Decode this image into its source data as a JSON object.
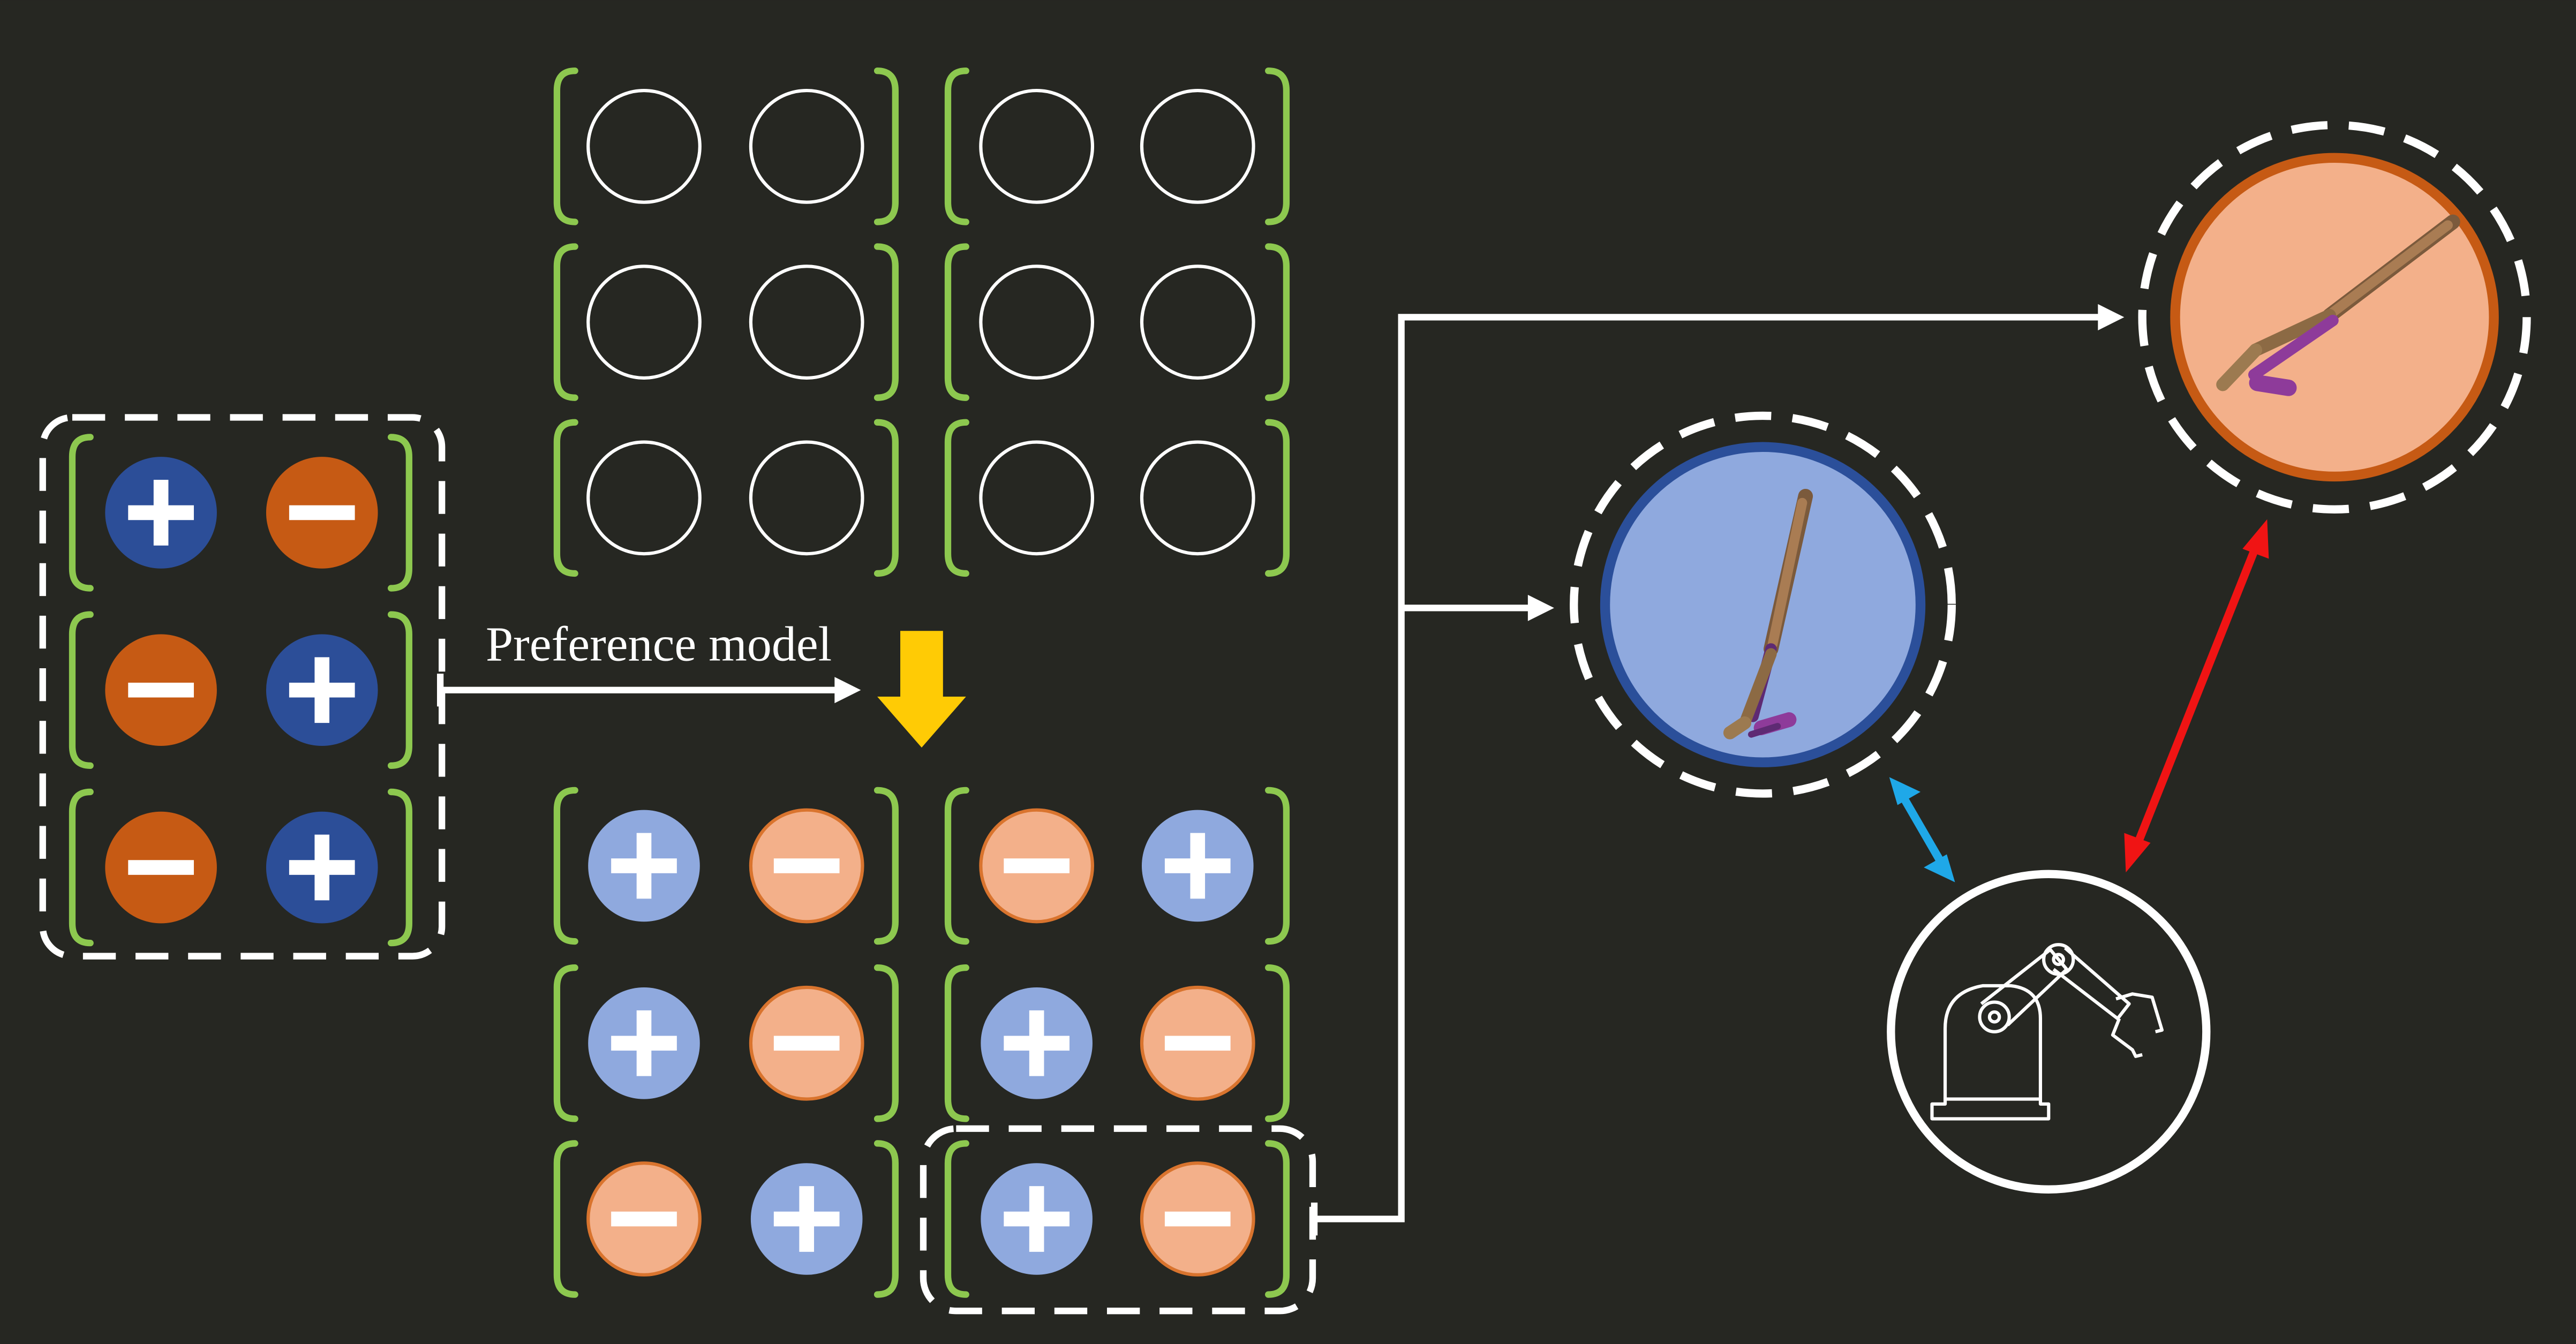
{
  "diagram": {
    "label": "Preference model",
    "colors": {
      "background": "#262722",
      "bracket": "#8DC84F",
      "plus_dark": "#2C4E98",
      "minus_dark": "#C65A14",
      "plus_light": "#8FA9DE",
      "minus_light": "#F3B08A",
      "minus_light_stroke": "#D9742E",
      "yellow_arrow": "#FFCB05",
      "cyan_arrow": "#1FA8E8",
      "red_arrow": "#F01414",
      "blue_node_stroke": "#2B4F9A",
      "orange_node_stroke": "#C65A14",
      "white": "#FFFFFF"
    },
    "icons": {
      "plus": "plus-icon",
      "minus": "minus-icon",
      "robot": "robot-arm-icon",
      "walker": "walker-pose-icon"
    },
    "input_pairs": [
      [
        "plus",
        "minus"
      ],
      [
        "minus",
        "plus"
      ],
      [
        "minus",
        "plus"
      ]
    ],
    "empty_pairs_rows": 3,
    "output_pairs": [
      [
        [
          "plus",
          "minus"
        ],
        [
          "minus",
          "plus"
        ]
      ],
      [
        [
          "plus",
          "minus"
        ],
        [
          "plus",
          "minus"
        ]
      ],
      [
        [
          "minus",
          "plus"
        ],
        [
          "plus",
          "minus"
        ]
      ]
    ]
  }
}
